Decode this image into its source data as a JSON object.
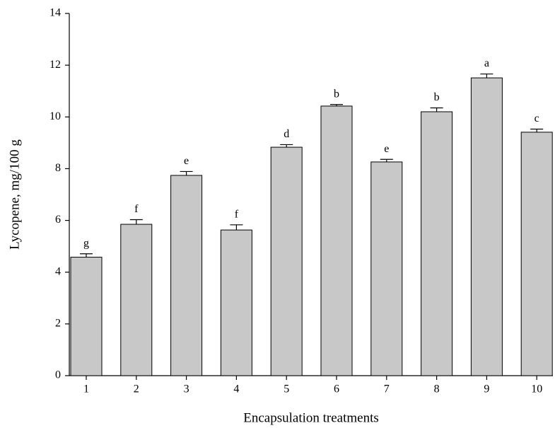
{
  "chart_data": {
    "type": "bar",
    "x_label": "Encapsulation treatments",
    "y_label": "Lycopene, mg/100 g",
    "categories": [
      "1",
      "2",
      "3",
      "4",
      "5",
      "6",
      "7",
      "8",
      "9",
      "10"
    ],
    "values": [
      4.58,
      5.85,
      7.74,
      5.63,
      8.83,
      10.42,
      8.26,
      10.2,
      11.51,
      9.41
    ],
    "errors": [
      0.13,
      0.18,
      0.15,
      0.2,
      0.1,
      0.06,
      0.1,
      0.15,
      0.15,
      0.12
    ],
    "annotations": [
      "g",
      "f",
      "e",
      "f",
      "d",
      "b",
      "e",
      "b",
      "a",
      "c"
    ],
    "color": "#c8c8c8",
    "ylim": [
      0,
      14
    ],
    "yticks": [
      0,
      2,
      4,
      6,
      8,
      10,
      12,
      14
    ],
    "grid": false
  }
}
